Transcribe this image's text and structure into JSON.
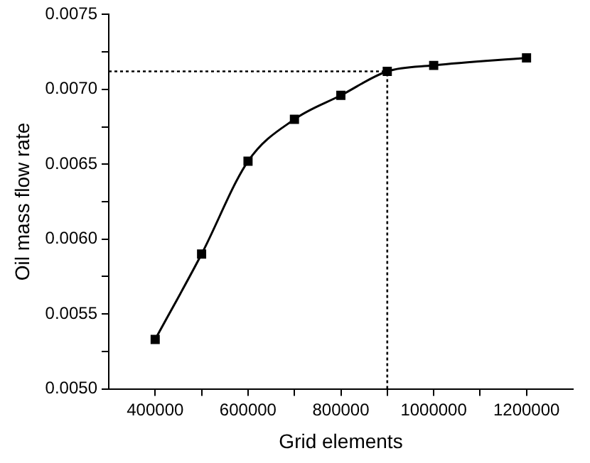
{
  "chart_data": {
    "type": "line",
    "xlabel": "Grid elements",
    "ylabel": "Oil mass flow rate",
    "x": [
      400000,
      500000,
      600000,
      700000,
      800000,
      900000,
      1000000,
      1200000
    ],
    "series": [
      {
        "color": "#000000",
        "values": [
          0.00533,
          0.0059,
          0.00652,
          0.0068,
          0.00696,
          0.00712,
          0.00716,
          0.00721
        ]
      }
    ],
    "xlim": [
      300000,
      1300000
    ],
    "xticks": [
      400000,
      {
        "value": 500000,
        "label": null
      },
      600000,
      {
        "value": 700000,
        "label": null
      },
      800000,
      {
        "value": 900000,
        "label": null
      },
      1000000,
      {
        "value": 1100000,
        "label": null
      },
      1200000
    ],
    "ylim": [
      0.005,
      0.0075
    ],
    "yticks": [
      {
        "value": 0.005,
        "label": "0.0050"
      },
      {
        "value": 0.00525,
        "label": null
      },
      {
        "value": 0.0055,
        "label": "0.0055"
      },
      {
        "value": 0.00575,
        "label": null
      },
      {
        "value": 0.006,
        "label": "0.0060"
      },
      {
        "value": 0.00625,
        "label": null
      },
      {
        "value": 0.0065,
        "label": "0.0065"
      },
      {
        "value": 0.00675,
        "label": null
      },
      {
        "value": 0.007,
        "label": "0.0070"
      },
      {
        "value": 0.00725,
        "label": null
      },
      {
        "value": 0.0075,
        "label": "0.0075"
      }
    ],
    "ref_lines": [
      {
        "axis": "y",
        "value": 0.00712,
        "color": "#000000",
        "line_style": "dotted"
      },
      {
        "axis": "x",
        "value": 900000,
        "color": "#000000",
        "line_style": "dotted"
      }
    ],
    "marker": "square",
    "line_style": "solid",
    "grid": false,
    "legend": false
  }
}
